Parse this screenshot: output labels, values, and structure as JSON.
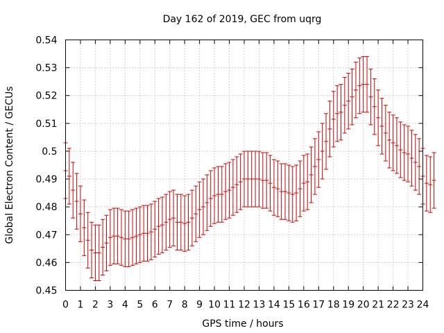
{
  "chart_data": {
    "type": "errorbar",
    "title": "Day 162 of 2019, GEC from uqrg",
    "xlabel": "GPS time / hours",
    "ylabel": "Global Electron Content / GECUs",
    "xlim": [
      0,
      24
    ],
    "ylim": [
      0.45,
      0.54
    ],
    "xticks": [
      "0",
      "1",
      "2",
      "3",
      "4",
      "5",
      "6",
      "7",
      "8",
      "9",
      "10",
      "11",
      "12",
      "13",
      "14",
      "15",
      "16",
      "17",
      "18",
      "19",
      "20",
      "21",
      "22",
      "23",
      "24"
    ],
    "yticks": [
      "0.45",
      "0.46",
      "0.47",
      "0.48",
      "0.49",
      "0.5",
      "0.51",
      "0.52",
      "0.53",
      "0.54"
    ],
    "grid": true,
    "color": "#cc0000",
    "x_step_hours": 0.25,
    "mean": [
      0.493,
      0.491,
      0.486,
      0.482,
      0.4775,
      0.4725,
      0.468,
      0.4645,
      0.4635,
      0.4635,
      0.4655,
      0.467,
      0.469,
      0.4695,
      0.4695,
      0.469,
      0.4685,
      0.4685,
      0.469,
      0.4695,
      0.47,
      0.4705,
      0.4705,
      0.471,
      0.472,
      0.473,
      0.4735,
      0.4745,
      0.4755,
      0.476,
      0.4745,
      0.4745,
      0.474,
      0.4745,
      0.476,
      0.4775,
      0.479,
      0.48,
      0.4815,
      0.483,
      0.484,
      0.4845,
      0.4845,
      0.4855,
      0.486,
      0.487,
      0.488,
      0.489,
      0.49,
      0.49,
      0.49,
      0.49,
      0.49,
      0.4895,
      0.4895,
      0.4885,
      0.487,
      0.4865,
      0.4855,
      0.4855,
      0.485,
      0.4845,
      0.485,
      0.4865,
      0.4885,
      0.489,
      0.4915,
      0.4945,
      0.497,
      0.5,
      0.5035,
      0.508,
      0.5115,
      0.5135,
      0.514,
      0.5165,
      0.518,
      0.5195,
      0.522,
      0.5235,
      0.524,
      0.524,
      0.5195,
      0.516,
      0.512,
      0.509,
      0.5065,
      0.504,
      0.503,
      0.502,
      0.5005,
      0.4995,
      0.499,
      0.4975,
      0.496,
      0.4945,
      0.491,
      0.4885,
      0.488,
      0.4895
    ],
    "error": 0.01
  }
}
